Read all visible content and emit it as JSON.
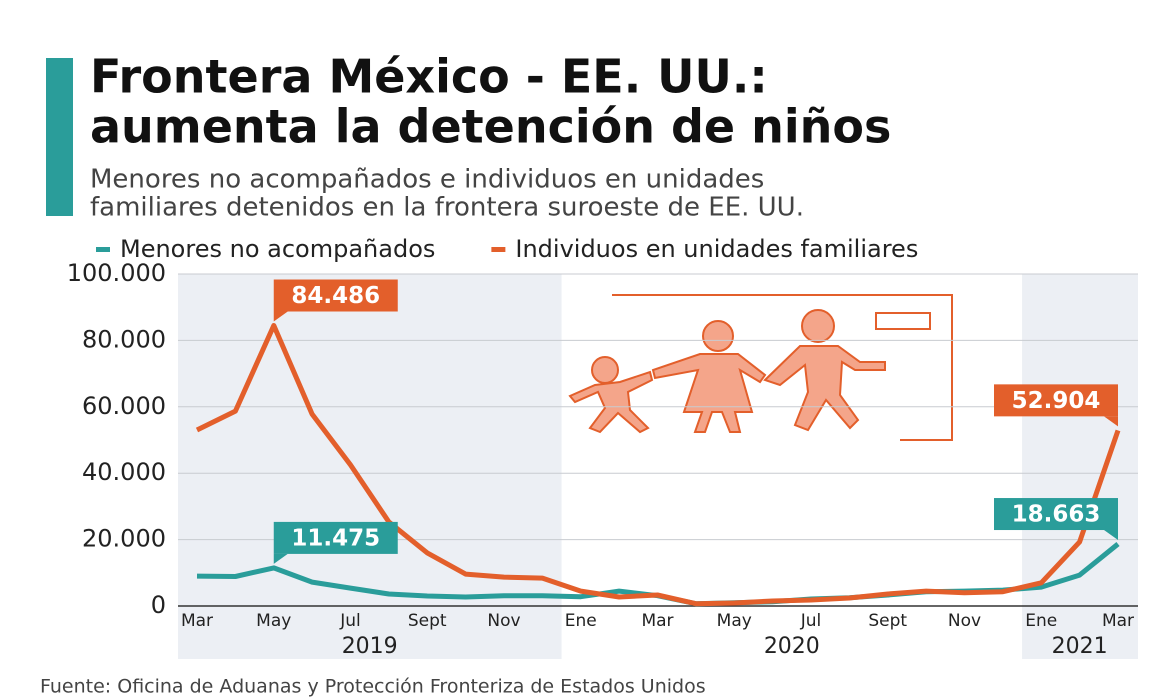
{
  "chart_data": {
    "type": "line",
    "title": [
      "Frontera México - EE. UU.:",
      "aumenta la detención de niños"
    ],
    "subtitle": [
      "Menores no acompañados e individuos en unidades",
      "familiares detenidos en la frontera suroeste de EE. UU."
    ],
    "source": "Fuente: Oficina de Aduanas y Protección Fronteriza de Estados Unidos",
    "categories": [
      "Mar",
      null,
      "May",
      null,
      "Jul",
      null,
      "Sept",
      null,
      "Nov",
      null,
      "Ene",
      null,
      "Mar",
      null,
      "May",
      null,
      "Jul",
      null,
      "Sept",
      null,
      "Nov",
      null,
      "Ene",
      null,
      "Mar"
    ],
    "years": [
      "2019",
      "2020",
      "2021"
    ],
    "series": [
      {
        "name": "Menores no acompañados",
        "color": "#2a9d9a",
        "values": [
          9000,
          8900,
          11475,
          7200,
          5400,
          3600,
          3000,
          2700,
          3100,
          3100,
          2800,
          4500,
          3100,
          700,
          1000,
          1300,
          2100,
          2500,
          3300,
          4300,
          4500,
          4800,
          5700,
          9300,
          18663
        ],
        "value_labels": [
          null,
          null,
          "11.475",
          null,
          null,
          null,
          null,
          null,
          null,
          null,
          null,
          null,
          null,
          null,
          null,
          null,
          null,
          null,
          null,
          null,
          null,
          null,
          null,
          null,
          "18.663"
        ]
      },
      {
        "name": "Individuos en unidades familiares",
        "color": "#e35f2b",
        "values": [
          53000,
          58700,
          84486,
          57800,
          42500,
          25300,
          16000,
          9600,
          8700,
          8400,
          4500,
          2700,
          3300,
          700,
          900,
          1500,
          1800,
          2400,
          3600,
          4500,
          4000,
          4300,
          7000,
          19300,
          52904
        ],
        "value_labels": [
          null,
          null,
          "84.486",
          null,
          null,
          null,
          null,
          null,
          null,
          null,
          null,
          null,
          null,
          null,
          null,
          null,
          null,
          null,
          null,
          null,
          null,
          null,
          null,
          null,
          "52.904"
        ]
      }
    ],
    "ylim": [
      0,
      100000
    ],
    "yticks": [
      0,
      {
        "value": 20000,
        "label": "20.000"
      },
      {
        "value": 40000,
        "label": "40.000"
      },
      {
        "value": 60000,
        "label": "60.000"
      },
      {
        "value": 80000,
        "label": "80.000"
      },
      {
        "value": 100000,
        "label": "100.000"
      }
    ],
    "grid": true
  }
}
